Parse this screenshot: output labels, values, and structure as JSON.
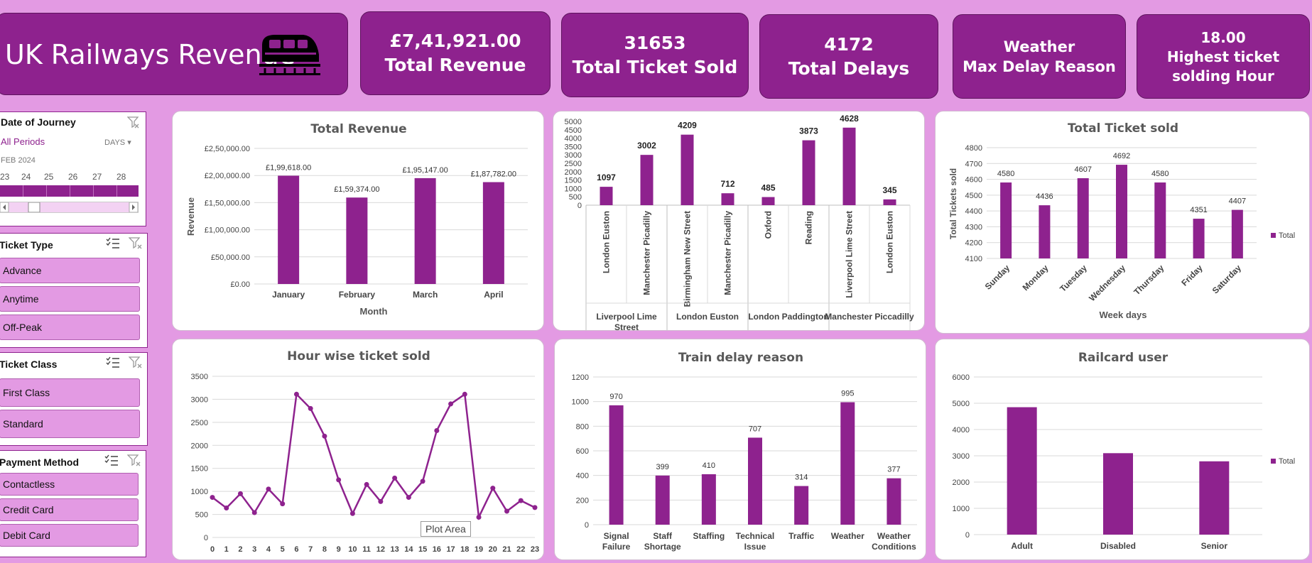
{
  "header": {
    "title": "UK Railways Revenue"
  },
  "kpis": [
    {
      "value": "£7,41,921.00",
      "label": "Total Revenue"
    },
    {
      "value": "31653",
      "label": "Total Ticket Sold"
    },
    {
      "value": "4172",
      "label": "Total Delays"
    },
    {
      "value": "Weather",
      "label": "Max Delay Reason"
    },
    {
      "value": "18.00",
      "label": "Highest ticket solding Hour"
    }
  ],
  "slicers": {
    "date": {
      "header": "Date of Journey",
      "selection": "All Periods",
      "unit": "DAYS",
      "month": "FEB 2024",
      "days": [
        "23",
        "24",
        "25",
        "26",
        "27",
        "28"
      ]
    },
    "ticket_type": {
      "header": "Ticket Type",
      "items": [
        "Advance",
        "Anytime",
        "Off-Peak"
      ]
    },
    "ticket_class": {
      "header": "Ticket Class",
      "items": [
        "First Class",
        "Standard"
      ]
    },
    "payment": {
      "header": "Payment Method",
      "items": [
        "Contactless",
        "Credit Card",
        "Debit Card"
      ]
    }
  },
  "tooltip": "Plot Area",
  "colors": {
    "accent": "#8e228e",
    "background": "#e39ae3"
  },
  "chart_data": [
    {
      "id": "revenue",
      "type": "bar",
      "title": "Total Revenue",
      "xlabel": "Month",
      "ylabel": "Revenue",
      "categories": [
        "January",
        "February",
        "March",
        "April"
      ],
      "values": [
        199618,
        159374,
        195147,
        187782
      ],
      "data_labels": [
        "£1,99,618.00",
        "£1,59,374.00",
        "£1,95,147.00",
        "£1,87,782.00"
      ],
      "ylim": [
        0,
        250000
      ],
      "yticks": [
        "£0.00",
        "£50,000.00",
        "£1,00,000.00",
        "£1,50,000.00",
        "£2,00,000.00",
        "£2,50,000.00"
      ],
      "grid": true
    },
    {
      "id": "stations",
      "type": "bar",
      "title": "",
      "categories": [
        "London Euston",
        "Manchester Picadilly",
        "Birmingham New Street",
        "Manchester Picadilly",
        "Oxford",
        "Reading",
        "Liverpool Lime Street",
        "London Euston"
      ],
      "groups": [
        "Liverpool Lime Street",
        "London Euston",
        "London Paddington",
        "Manchester Piccadilly"
      ],
      "values": [
        1097,
        3002,
        4209,
        712,
        485,
        3873,
        4628,
        345
      ],
      "ylim": [
        0,
        5000
      ],
      "yticks": [
        "0",
        "500",
        "1000",
        "1500",
        "2000",
        "2500",
        "3000",
        "3500",
        "4000",
        "4500",
        "5000"
      ]
    },
    {
      "id": "weekday",
      "type": "bar",
      "title": "Total Ticket sold",
      "xlabel": "Week days",
      "ylabel": "Total Tickets sold",
      "categories": [
        "Sunday",
        "Monday",
        "Tuesday",
        "Wednesday",
        "Thursday",
        "Friday",
        "Saturday"
      ],
      "values": [
        4580,
        4436,
        4607,
        4692,
        4580,
        4351,
        4407
      ],
      "ylim": [
        4100,
        4800
      ],
      "yticks": [
        "4100",
        "4200",
        "4300",
        "4400",
        "4500",
        "4600",
        "4700",
        "4800"
      ],
      "legend": "Total",
      "legend_position": "right",
      "grid": true
    },
    {
      "id": "hourly",
      "type": "line",
      "title": "Hour wise ticket sold",
      "x": [
        "0",
        "1",
        "2",
        "3",
        "4",
        "5",
        "6",
        "7",
        "8",
        "9",
        "10",
        "11",
        "12",
        "13",
        "14",
        "15",
        "16",
        "17",
        "18",
        "19",
        "20",
        "21",
        "22",
        "23"
      ],
      "values": [
        870,
        640,
        950,
        540,
        1050,
        730,
        3110,
        2800,
        2200,
        1250,
        520,
        1150,
        780,
        1290,
        870,
        1220,
        2320,
        2900,
        3110,
        440,
        1070,
        570,
        800,
        650
      ],
      "ylim": [
        0,
        3500
      ],
      "yticks": [
        "0",
        "500",
        "1000",
        "1500",
        "2000",
        "2500",
        "3000",
        "3500"
      ],
      "grid": true
    },
    {
      "id": "delay",
      "type": "bar",
      "title": "Train delay reason",
      "categories": [
        "Signal Failure",
        "Staff Shortage",
        "Staffing",
        "Technical Issue",
        "Traffic",
        "Weather",
        "Weather Conditions"
      ],
      "values": [
        970,
        399,
        410,
        707,
        314,
        995,
        377
      ],
      "ylim": [
        0,
        1200
      ],
      "yticks": [
        "0",
        "200",
        "400",
        "600",
        "800",
        "1000",
        "1200"
      ],
      "grid": true
    },
    {
      "id": "railcard",
      "type": "bar",
      "title": "Railcard user",
      "categories": [
        "Adult",
        "Disabled",
        "Senior"
      ],
      "values": [
        4850,
        3100,
        2790
      ],
      "ylim": [
        0,
        6000
      ],
      "yticks": [
        "0",
        "1000",
        "2000",
        "3000",
        "4000",
        "5000",
        "6000"
      ],
      "legend": "Total",
      "legend_position": "right",
      "grid": true
    }
  ]
}
